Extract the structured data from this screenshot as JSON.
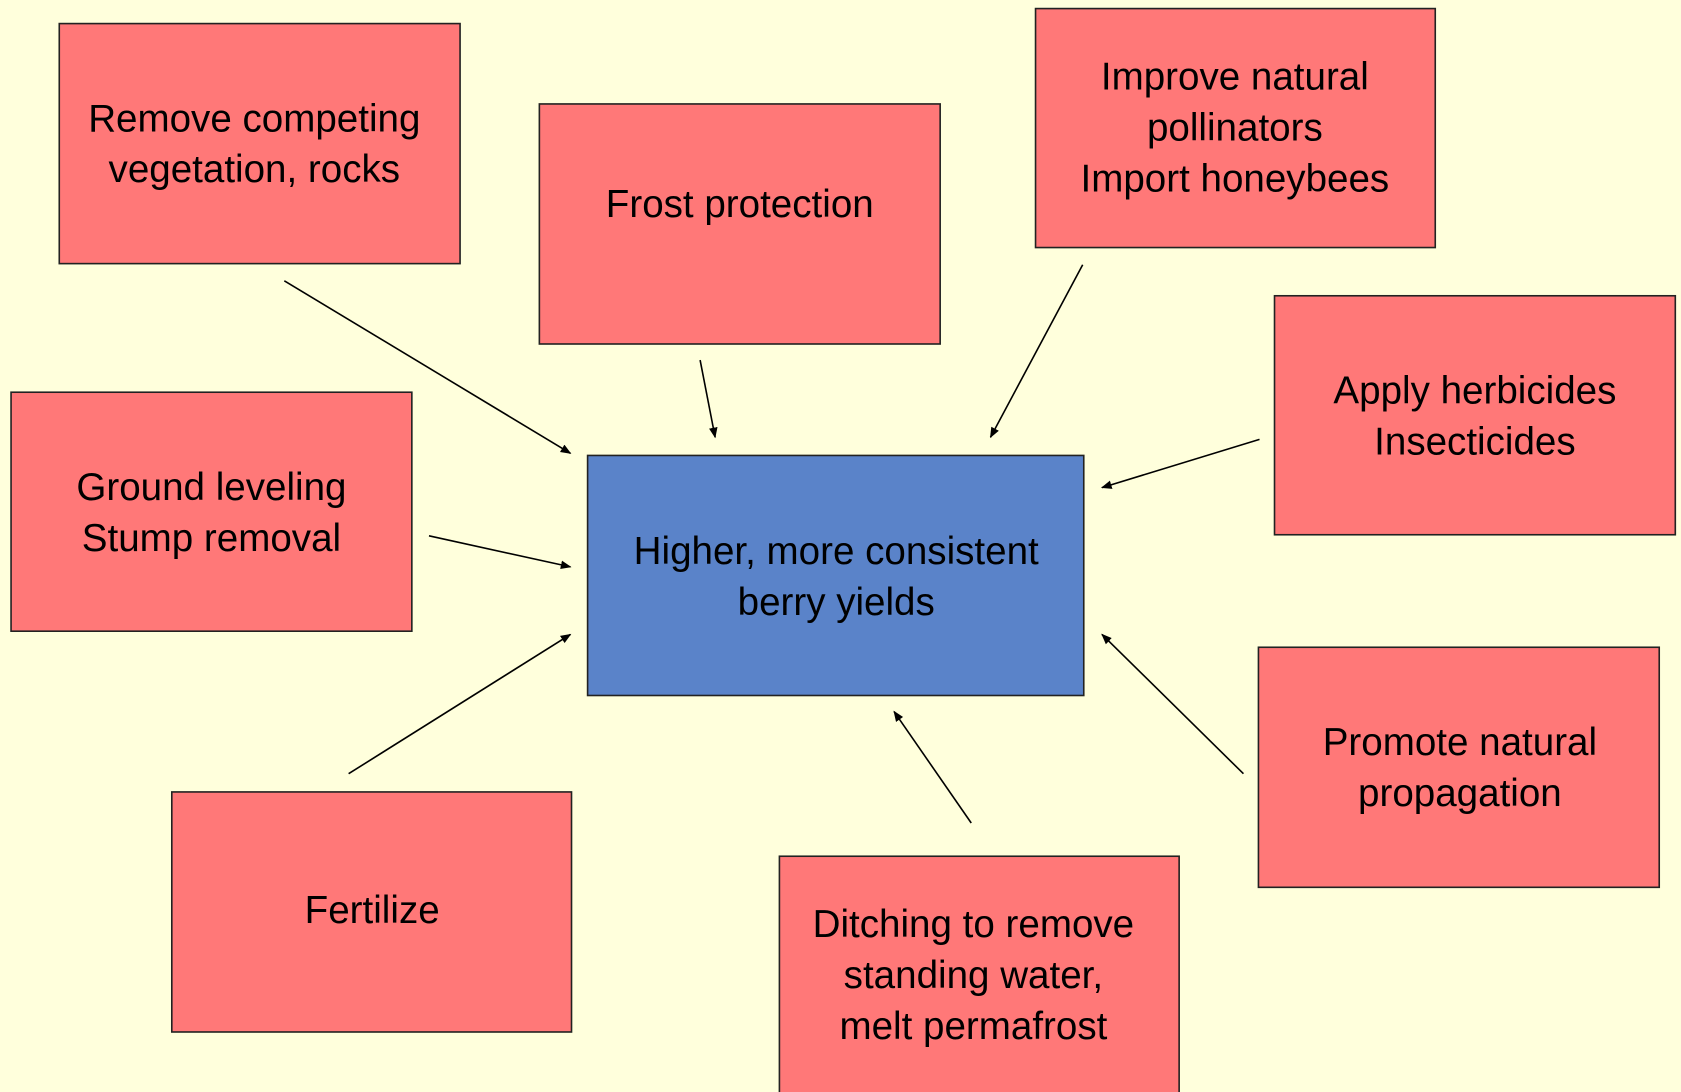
{
  "center": {
    "lines": [
      "Higher, more consistent",
      "berry yields"
    ]
  },
  "nodes": [
    {
      "lines": [
        "Remove competing",
        "vegetation, rocks"
      ]
    },
    {
      "lines": [
        "Frost protection"
      ]
    },
    {
      "lines": [
        "Improve natural",
        "pollinators",
        "Import honeybees"
      ]
    },
    {
      "lines": [
        "Apply herbicides",
        "Insecticides"
      ]
    },
    {
      "lines": [
        "Ground leveling",
        "Stump removal"
      ]
    },
    {
      "lines": [
        "Promote natural",
        "propagation"
      ]
    },
    {
      "lines": [
        "Ditching to remove",
        "standing water,",
        "melt permafrost"
      ]
    },
    {
      "lines": [
        "Fertilize"
      ]
    }
  ]
}
